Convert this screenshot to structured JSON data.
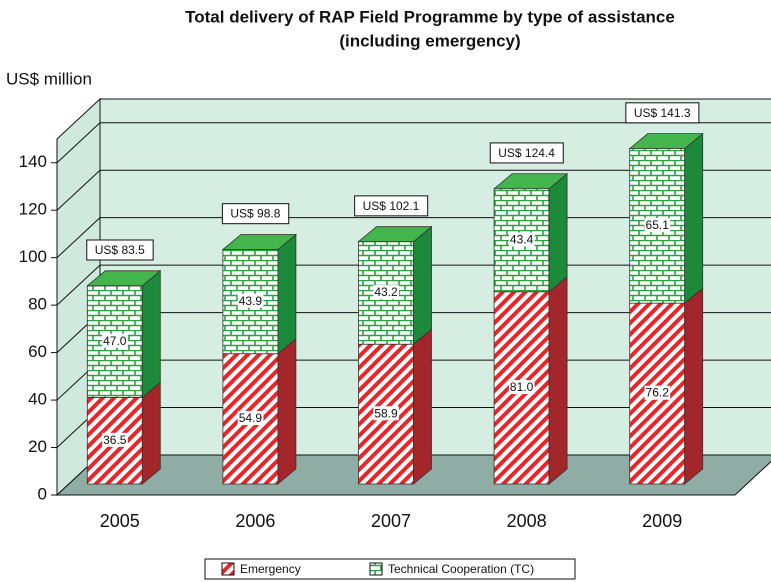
{
  "chart_data": {
    "type": "bar3d_stacked",
    "title": "Total delivery of RAP Field Programme by type of assistance",
    "subtitle": "(including emergency)",
    "y_label": "US$ million",
    "categories": [
      "2005",
      "2006",
      "2007",
      "2008",
      "2009"
    ],
    "series": [
      {
        "name": "Emergency",
        "color": "#e8262a",
        "values": [
          36.5,
          54.9,
          58.9,
          81.0,
          76.2
        ],
        "value_labels": [
          "36.5",
          "54.9",
          "58.9",
          "81.0",
          "76.2"
        ]
      },
      {
        "name": "Technical Cooperation (TC)",
        "color": "#2ea043",
        "values": [
          47.0,
          43.9,
          43.2,
          43.4,
          65.1
        ],
        "value_labels": [
          "47.0",
          "43.9",
          "43.2",
          "43.4",
          "65.1"
        ]
      }
    ],
    "total_labels": [
      "US$ 83.5",
      "US$ 98.8",
      "US$ 102.1",
      "US$ 124.4",
      "US$ 141.3"
    ],
    "ylim": [
      0,
      150
    ],
    "yticks": [
      0,
      20,
      40,
      60,
      80,
      100,
      120,
      140
    ],
    "grid": true,
    "legend": "bottom"
  }
}
